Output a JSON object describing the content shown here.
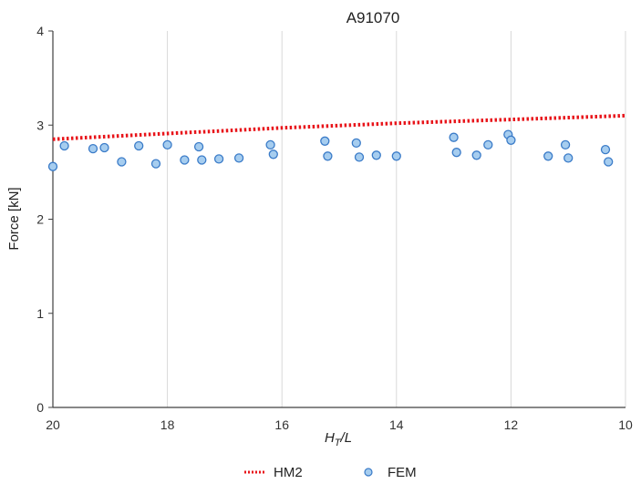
{
  "chart_data": {
    "type": "scatter",
    "title": "A91070",
    "xlabel": {
      "main": "H",
      "sub": "T",
      "rest": "/L"
    },
    "ylabel": "Force [kN]",
    "xlim": [
      20,
      10
    ],
    "xaxis_reversed": true,
    "ylim": [
      0,
      4
    ],
    "xticks": [
      "20",
      "18",
      "16",
      "14",
      "12",
      "10"
    ],
    "yticks": [
      "0",
      "1",
      "2",
      "3",
      "4"
    ],
    "grid": "vertical",
    "legend_position": "bottom",
    "series": [
      {
        "name": "HM2",
        "style": "dotted-line",
        "color": "#e8141a",
        "x": [
          20,
          18,
          16,
          14,
          12,
          10
        ],
        "y": [
          2.85,
          2.91,
          2.97,
          3.02,
          3.06,
          3.1
        ]
      },
      {
        "name": "FEM",
        "style": "marker",
        "color": "#5b9bd5",
        "x": [
          20.0,
          19.8,
          19.3,
          19.1,
          18.8,
          18.5,
          18.2,
          18.0,
          17.7,
          17.45,
          17.4,
          17.1,
          16.75,
          16.2,
          16.15,
          15.25,
          15.2,
          14.7,
          14.65,
          14.35,
          14.0,
          13.0,
          12.95,
          12.6,
          12.4,
          12.05,
          12.0,
          11.35,
          11.05,
          11.0,
          10.35,
          10.3
        ],
        "y": [
          2.56,
          2.78,
          2.75,
          2.76,
          2.61,
          2.78,
          2.59,
          2.79,
          2.63,
          2.77,
          2.63,
          2.64,
          2.65,
          2.79,
          2.69,
          2.83,
          2.67,
          2.81,
          2.66,
          2.68,
          2.67,
          2.87,
          2.71,
          2.68,
          2.79,
          2.9,
          2.84,
          2.67,
          2.79,
          2.65,
          2.74,
          2.61
        ]
      }
    ]
  }
}
